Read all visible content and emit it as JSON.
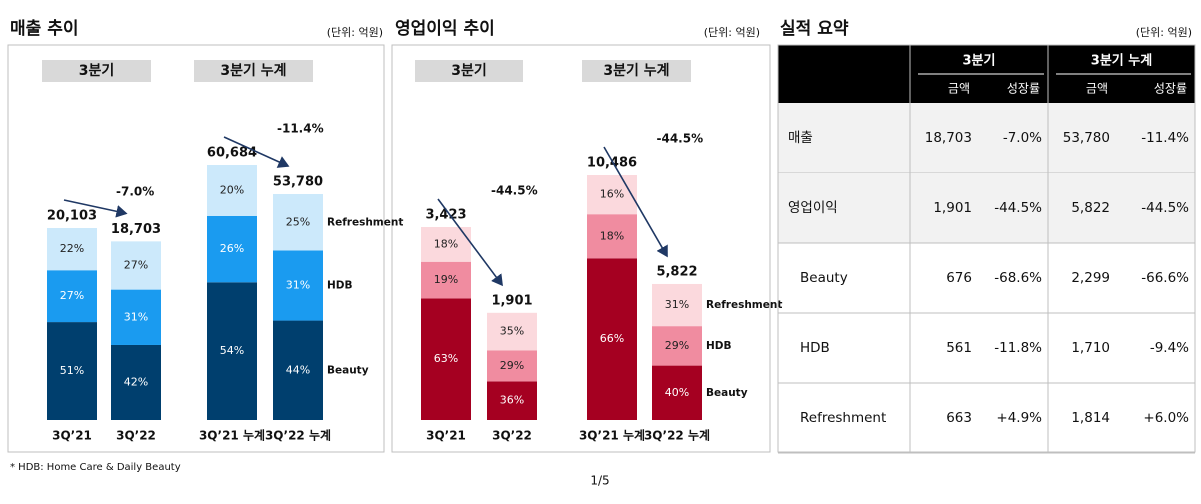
{
  "chart_data": [
    {
      "type": "bar",
      "title": "매출 추이",
      "unit": "(단위: 억원)",
      "groups": [
        {
          "label": "3분기",
          "change": "-7.0%"
        },
        {
          "label": "3분기 누계",
          "change": "-11.4%"
        }
      ],
      "categories": [
        "3Q’21",
        "3Q’22",
        "3Q’21 누계",
        "3Q’22 누계"
      ],
      "totals": [
        20103,
        18703,
        60684,
        53780
      ],
      "total_labels": [
        "20,103",
        "18,703",
        "60,684",
        "53,780"
      ],
      "series": [
        {
          "name": "Beauty",
          "color": "#003f6e",
          "values": [
            51,
            42,
            54,
            44
          ],
          "value_labels": [
            "51%",
            "42%",
            "54%",
            "44%"
          ]
        },
        {
          "name": "HDB",
          "color": "#1a9bf0",
          "values": [
            27,
            31,
            26,
            31
          ],
          "value_labels": [
            "27%",
            "31%",
            "26%",
            "31%"
          ]
        },
        {
          "name": "Refreshment",
          "color": "#cce9fb",
          "values": [
            22,
            27,
            20,
            25
          ],
          "value_labels": [
            "22%",
            "27%",
            "20%",
            "25%"
          ]
        }
      ]
    },
    {
      "type": "bar",
      "title": "영업이익 추이",
      "unit": "(단위: 억원)",
      "groups": [
        {
          "label": "3분기",
          "change": "-44.5%"
        },
        {
          "label": "3분기 누계",
          "change": "-44.5%"
        }
      ],
      "categories": [
        "3Q’21",
        "3Q’22",
        "3Q’21 누계",
        "3Q’22 누계"
      ],
      "totals": [
        3423,
        1901,
        10486,
        5822
      ],
      "total_labels": [
        "3,423",
        "1,901",
        "10,486",
        "5,822"
      ],
      "series": [
        {
          "name": "Beauty",
          "color": "#a50021",
          "values": [
            63,
            36,
            66,
            40
          ],
          "value_labels": [
            "63%",
            "36%",
            "66%",
            "40%"
          ]
        },
        {
          "name": "HDB",
          "color": "#f08ca0",
          "values": [
            19,
            29,
            18,
            29
          ],
          "value_labels": [
            "19%",
            "29%",
            "18%",
            "29%"
          ]
        },
        {
          "name": "Refreshment",
          "color": "#fbd9dd",
          "values": [
            18,
            35,
            16,
            31
          ],
          "value_labels": [
            "18%",
            "35%",
            "16%",
            "31%"
          ]
        }
      ]
    }
  ],
  "table": {
    "title": "실적 요약",
    "unit": "(단위: 억원)",
    "group_headers": [
      "3분기",
      "3분기 누계"
    ],
    "sub_headers": [
      "금액",
      "성장률",
      "금액",
      "성장률"
    ],
    "rows": [
      [
        "매출",
        "18,703",
        "-7.0%",
        "53,780",
        "-11.4%"
      ],
      [
        "영업이익",
        "1,901",
        "-44.5%",
        "5,822",
        "-44.5%"
      ],
      [
        "Beauty",
        "676",
        "-68.6%",
        "2,299",
        "-66.6%"
      ],
      [
        "HDB",
        "561",
        "-11.8%",
        "1,710",
        "-9.4%"
      ],
      [
        "Refreshment",
        "663",
        "+4.9%",
        "1,814",
        "+6.0%"
      ]
    ]
  },
  "footnote": "* HDB: Home Care & Daily Beauty",
  "page": "1/5"
}
